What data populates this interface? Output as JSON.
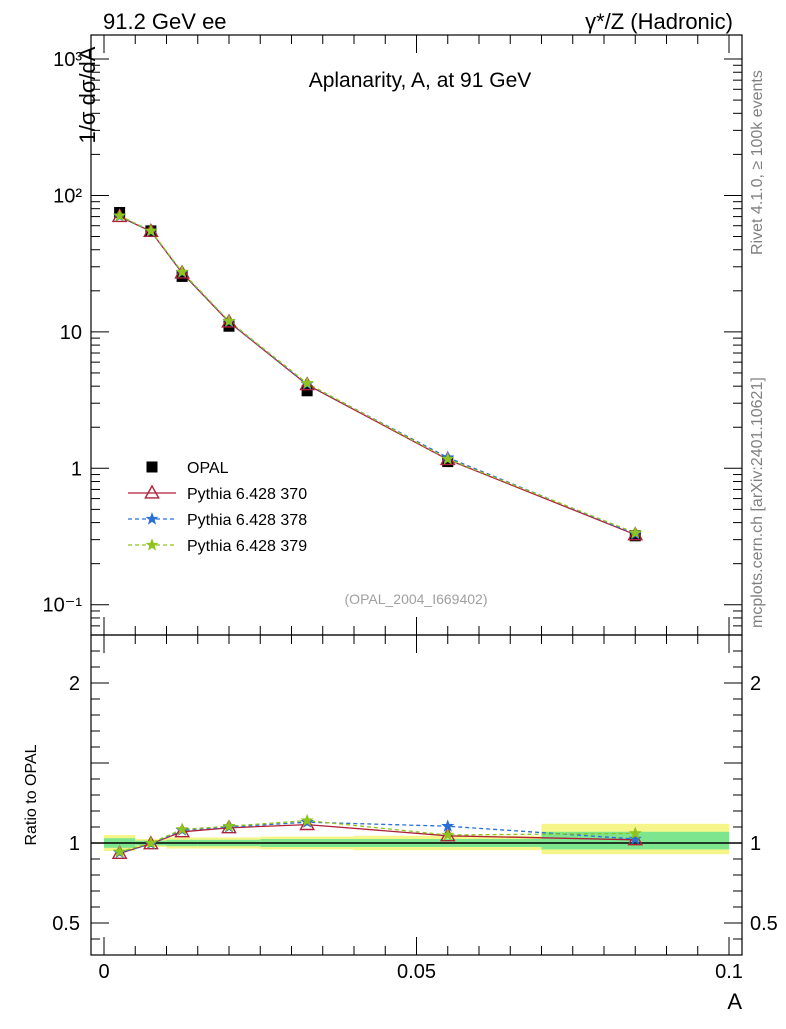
{
  "header": {
    "left": "91.2 GeV ee",
    "right": "γ*/Z (Hadronic)"
  },
  "side": {
    "rivet": "Rivet 4.1.0, ≥ 100k events",
    "mcplots": "mcplots.cern.ch [arXiv:2401.10621]"
  },
  "chart_data": {
    "type": "line",
    "title": "Aplanarity, A, at 91 GeV",
    "watermark": "(OPAL_2004_I669402)",
    "ylabel": "1/σ  dσ/dA",
    "xlabel": "A",
    "ratio_ylabel": "Ratio to OPAL",
    "xlim": [
      0,
      0.1
    ],
    "ylim_log": [
      0.06,
      1500
    ],
    "ratio_ylim": [
      0.3,
      2.3
    ],
    "x_ticks": [
      {
        "v": 0,
        "label": "0"
      },
      {
        "v": 0.05,
        "label": "0.05"
      },
      {
        "v": 0.1,
        "label": "0.1"
      }
    ],
    "y_ticks": [
      {
        "v": 0.1,
        "label": "10⁻¹"
      },
      {
        "v": 1,
        "label": "1"
      },
      {
        "v": 10,
        "label": "10"
      },
      {
        "v": 100,
        "label": "10²"
      },
      {
        "v": 1000,
        "label": "10³"
      }
    ],
    "ratio_ticks": [
      {
        "v": 0.5,
        "label": "0.5"
      },
      {
        "v": 1,
        "label": "1"
      },
      {
        "v": 2,
        "label": "2"
      }
    ],
    "data_series": {
      "name": "OPAL",
      "x": [
        0.0025,
        0.0075,
        0.0125,
        0.02,
        0.0325,
        0.055,
        0.085
      ],
      "y": [
        75,
        55,
        25.5,
        11,
        3.7,
        1.12,
        0.32
      ]
    },
    "bands": [
      {
        "x0": 0,
        "x1": 0.005,
        "lo": 0.97,
        "hi": 1.03,
        "lo2": 0.95,
        "hi2": 1.05
      },
      {
        "x0": 0.005,
        "x1": 0.01,
        "lo": 0.985,
        "hi": 1.015,
        "lo2": 0.975,
        "hi2": 1.025
      },
      {
        "x0": 0.01,
        "x1": 0.015,
        "lo": 0.98,
        "hi": 1.02,
        "lo2": 0.965,
        "hi2": 1.035
      },
      {
        "x0": 0.015,
        "x1": 0.025,
        "lo": 0.98,
        "hi": 1.02,
        "lo2": 0.965,
        "hi2": 1.035
      },
      {
        "x0": 0.025,
        "x1": 0.04,
        "lo": 0.975,
        "hi": 1.025,
        "lo2": 0.96,
        "hi2": 1.04
      },
      {
        "x0": 0.04,
        "x1": 0.07,
        "lo": 0.975,
        "hi": 1.025,
        "lo2": 0.955,
        "hi2": 1.045
      },
      {
        "x0": 0.07,
        "x1": 0.1,
        "lo": 0.96,
        "hi": 1.07,
        "lo2": 0.93,
        "hi2": 1.12
      }
    ],
    "series": [
      {
        "name": "Pythia 6.428 370",
        "color": "#b0203a",
        "dash": "",
        "marker": "triangle",
        "x": [
          0.0025,
          0.0075,
          0.0125,
          0.02,
          0.0325,
          0.055,
          0.085
        ],
        "y": [
          70,
          54.5,
          27,
          11.8,
          4.1,
          1.16,
          0.326
        ],
        "ratio": [
          0.935,
          0.995,
          1.07,
          1.095,
          1.115,
          1.045,
          1.02
        ]
      },
      {
        "name": "Pythia 6.428 378",
        "color": "#2a6fd6",
        "dash": "4,3",
        "marker": "star",
        "x": [
          0.0025,
          0.0075,
          0.0125,
          0.02,
          0.0325,
          0.055,
          0.085
        ],
        "y": [
          70.5,
          54.7,
          27.3,
          11.9,
          4.15,
          1.2,
          0.33
        ],
        "ratio": [
          0.94,
          0.995,
          1.08,
          1.1,
          1.13,
          1.105,
          1.025
        ]
      },
      {
        "name": "Pythia 6.428 379",
        "color": "#8fc31f",
        "dash": "4,3",
        "marker": "star",
        "x": [
          0.0025,
          0.0075,
          0.0125,
          0.02,
          0.0325,
          0.055,
          0.085
        ],
        "y": [
          71,
          55,
          27.5,
          12,
          4.2,
          1.17,
          0.336
        ],
        "ratio": [
          0.945,
          1.0,
          1.085,
          1.105,
          1.14,
          1.05,
          1.06
        ]
      }
    ]
  }
}
